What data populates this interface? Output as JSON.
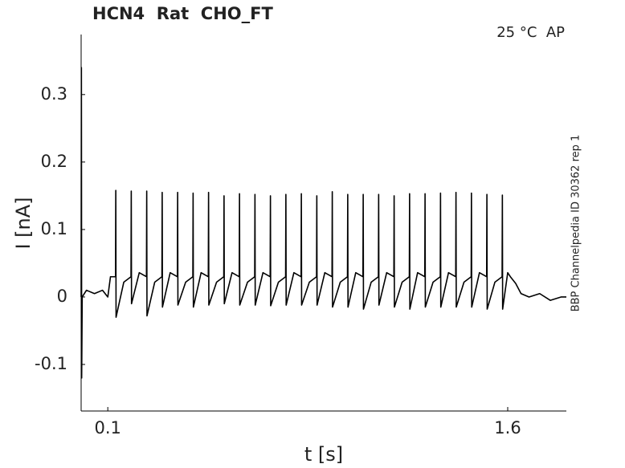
{
  "chart_data": {
    "type": "line",
    "title": "HCN4  Rat  CHO_FT",
    "annotation": "25 °C  AP",
    "side_note": "BBP Channelpedia ID 30362 rep 1",
    "x_label": "t [s]",
    "y_label": "I [nA]",
    "color": "#000000",
    "xlim": [
      0,
      1.82
    ],
    "ylim": [
      -0.169,
      0.389
    ],
    "xticks": [
      0.1,
      1.6
    ],
    "yticks": [
      -0.1,
      0,
      0.1,
      0.2,
      0.3
    ],
    "x": [
      0.0,
      0.001,
      0.002,
      0.004,
      0.02,
      0.05,
      0.08,
      0.1,
      0.11,
      0.129,
      0.13,
      0.131,
      0.16,
      0.187,
      0.188,
      0.189,
      0.218,
      0.245,
      0.246,
      0.247,
      0.276,
      0.303,
      0.304,
      0.305,
      0.334,
      0.361,
      0.362,
      0.363,
      0.392,
      0.419,
      0.42,
      0.421,
      0.45,
      0.477,
      0.478,
      0.479,
      0.508,
      0.535,
      0.536,
      0.537,
      0.566,
      0.593,
      0.594,
      0.595,
      0.624,
      0.651,
      0.652,
      0.653,
      0.682,
      0.709,
      0.71,
      0.711,
      0.74,
      0.767,
      0.768,
      0.769,
      0.798,
      0.825,
      0.826,
      0.827,
      0.856,
      0.883,
      0.884,
      0.885,
      0.914,
      0.941,
      0.942,
      0.943,
      0.972,
      0.999,
      1.0,
      1.001,
      1.03,
      1.057,
      1.058,
      1.059,
      1.088,
      1.115,
      1.116,
      1.117,
      1.146,
      1.173,
      1.174,
      1.175,
      1.204,
      1.231,
      1.232,
      1.233,
      1.262,
      1.289,
      1.29,
      1.291,
      1.32,
      1.347,
      1.348,
      1.349,
      1.378,
      1.405,
      1.406,
      1.407,
      1.436,
      1.463,
      1.464,
      1.465,
      1.494,
      1.521,
      1.522,
      1.523,
      1.552,
      1.579,
      1.58,
      1.581,
      1.6,
      1.61,
      1.63,
      1.65,
      1.68,
      1.72,
      1.76,
      1.8,
      1.82
    ],
    "values": [
      0.0,
      0.34,
      -0.12,
      0.0,
      0.01,
      0.005,
      0.01,
      0.0,
      0.03,
      0.03,
      0.158,
      -0.03,
      0.022,
      0.03,
      0.157,
      -0.01,
      0.036,
      0.03,
      0.157,
      -0.028,
      0.022,
      0.03,
      0.155,
      -0.015,
      0.036,
      0.03,
      0.155,
      -0.012,
      0.022,
      0.03,
      0.154,
      -0.015,
      0.036,
      0.03,
      0.155,
      -0.012,
      0.022,
      0.03,
      0.15,
      -0.01,
      0.036,
      0.03,
      0.153,
      -0.012,
      0.022,
      0.03,
      0.152,
      -0.012,
      0.036,
      0.03,
      0.15,
      -0.013,
      0.022,
      0.03,
      0.152,
      -0.012,
      0.036,
      0.03,
      0.153,
      -0.012,
      0.022,
      0.03,
      0.15,
      -0.012,
      0.036,
      0.03,
      0.156,
      -0.015,
      0.022,
      0.03,
      0.152,
      -0.015,
      0.036,
      0.03,
      0.152,
      -0.018,
      0.022,
      0.03,
      0.152,
      -0.012,
      0.036,
      0.03,
      0.15,
      -0.015,
      0.022,
      0.03,
      0.153,
      -0.018,
      0.036,
      0.03,
      0.153,
      -0.015,
      0.022,
      0.03,
      0.154,
      -0.015,
      0.036,
      0.03,
      0.155,
      -0.015,
      0.022,
      0.03,
      0.154,
      -0.015,
      0.036,
      0.03,
      0.152,
      -0.018,
      0.022,
      0.03,
      0.151,
      -0.018,
      0.036,
      0.03,
      0.02,
      0.005,
      0.0,
      0.005,
      -0.005,
      0.0,
      0.0
    ]
  }
}
